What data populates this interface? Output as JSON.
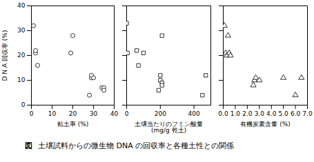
{
  "chart_data": [
    {
      "type": "scatter",
      "x": [
        1,
        2,
        2,
        3,
        19,
        20,
        28,
        29,
        29,
        30,
        34,
        35,
        35
      ],
      "values": [
        32,
        21,
        22,
        16,
        21,
        28,
        4,
        11,
        12,
        11,
        7,
        7,
        6
      ],
      "xlabel": [
        "粘土率 (%)"
      ],
      "ylabel": "D N A 回収率 (%)",
      "xlim": [
        0,
        40
      ],
      "xticks": [
        0,
        10,
        20,
        30,
        40
      ],
      "ylim": [
        0,
        40
      ],
      "yticks": [
        0,
        10,
        20,
        30,
        40
      ],
      "marker": "circle",
      "color": "black"
    },
    {
      "type": "scatter",
      "x": [
        0,
        5,
        60,
        70,
        100,
        190,
        200,
        200,
        210,
        210,
        210,
        450,
        470
      ],
      "values": [
        33,
        21,
        22,
        16,
        21,
        6,
        12,
        10,
        9,
        8,
        28,
        4,
        12
      ],
      "xlabel": [
        "土壌当たりのフミン酸量",
        "(mg/g 乾土)"
      ],
      "xlim": [
        0,
        500
      ],
      "xticks": [
        0,
        200,
        400
      ],
      "ylim": [
        0,
        40
      ],
      "yticks": [
        0,
        10,
        20,
        30,
        40
      ],
      "tick_labels": "x",
      "marker": "square",
      "color": "black"
    },
    {
      "type": "scatter",
      "x": [
        0.1,
        0.2,
        0.3,
        0.4,
        0.5,
        0.6,
        2.5,
        2.6,
        2.7,
        3.0,
        5.0,
        6.0,
        6.5
      ],
      "values": [
        32,
        21,
        20,
        28,
        21,
        20,
        8,
        10,
        11,
        10,
        11,
        4,
        11
      ],
      "xlabel": [
        "有機炭素含量 (%)"
      ],
      "xlim": [
        0,
        7
      ],
      "xticks": [
        0,
        1,
        2,
        3,
        4,
        5,
        6,
        7
      ],
      "ylim": [
        0,
        40
      ],
      "yticks": [
        0,
        10,
        20,
        30,
        40
      ],
      "tick_labels": "x",
      "marker": "triangle",
      "color": "black"
    }
  ],
  "caption": [
    "図",
    "土壌試料からの微生物 DNA の回収率と各種土性との関係"
  ]
}
